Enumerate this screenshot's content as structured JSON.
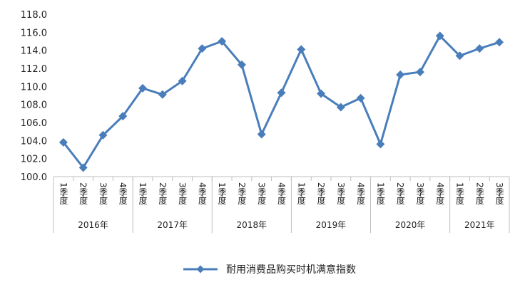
{
  "chart_data": {
    "type": "line",
    "series": [
      {
        "name": "耐用消费品购买时机满意指数",
        "color": "#4A7EBB",
        "values": [
          103.8,
          101.0,
          104.6,
          106.7,
          109.8,
          109.1,
          110.6,
          114.2,
          115.0,
          112.4,
          104.7,
          109.3,
          114.1,
          109.2,
          107.7,
          108.7,
          103.6,
          111.3,
          111.6,
          115.6,
          113.4,
          114.2,
          114.9
        ]
      }
    ],
    "quarter_labels": [
      "1季度",
      "2季度",
      "3季度",
      "4季度",
      "1季度",
      "2季度",
      "3季度",
      "4季度",
      "1季度",
      "2季度",
      "3季度",
      "4季度",
      "1季度",
      "2季度",
      "3季度",
      "4季度",
      "1季度",
      "2季度",
      "3季度",
      "4季度",
      "1季度",
      "2季度",
      "3季度"
    ],
    "year_groups": [
      {
        "label": "2016年",
        "quarters": 4
      },
      {
        "label": "2017年",
        "quarters": 4
      },
      {
        "label": "2018年",
        "quarters": 4
      },
      {
        "label": "2019年",
        "quarters": 4
      },
      {
        "label": "2020年",
        "quarters": 4
      },
      {
        "label": "2021年",
        "quarters": 3
      }
    ],
    "y_ticks": [
      "100.0",
      "102.0",
      "104.0",
      "106.0",
      "108.0",
      "110.0",
      "112.0",
      "114.0",
      "116.0",
      "118.0"
    ],
    "ylim": [
      100,
      118
    ],
    "grid": false,
    "legend_position": "bottom",
    "marker": "diamond"
  }
}
